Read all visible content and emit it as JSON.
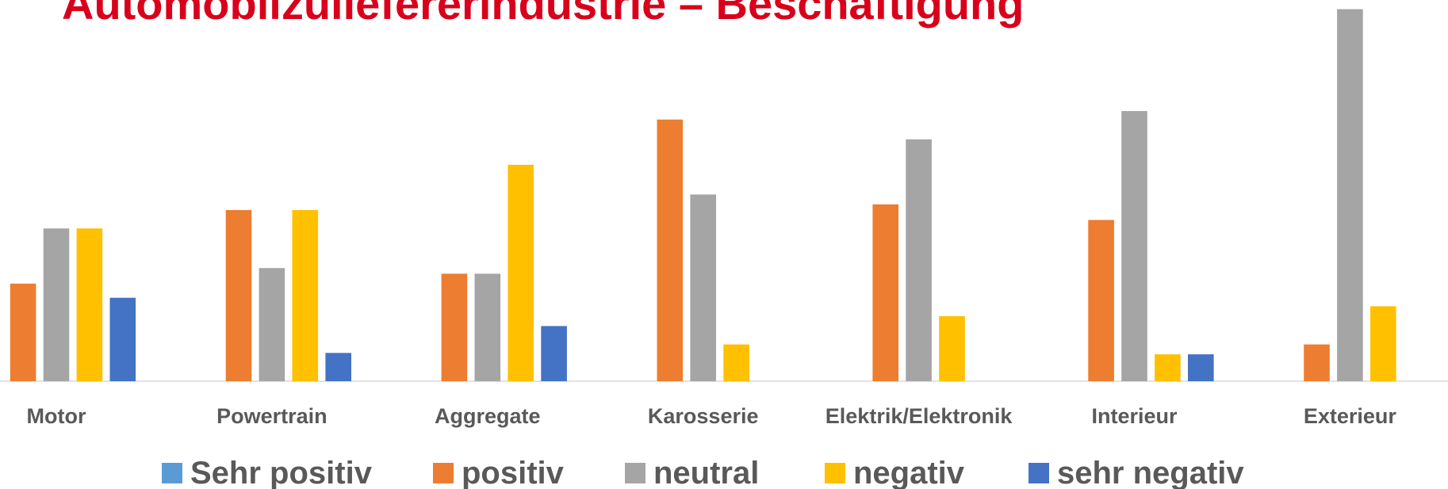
{
  "chart_data": {
    "type": "bar",
    "title": "Automobilzuliefererindustrie – Beschäftigung",
    "categories": [
      "Motor",
      "Powertrain",
      "Aggregate",
      "Karosserie",
      "Elektrik/Elektronik",
      "Interieur",
      "Exterieur"
    ],
    "series": [
      {
        "name": "Sehr positiv",
        "color": "#5b9bd5",
        "values": [
          null,
          null,
          null,
          null,
          null,
          null,
          null
        ]
      },
      {
        "name": "positiv",
        "color": "#ed7d31",
        "values": [
          6.9,
          12.1,
          7.6,
          18.5,
          12.5,
          11.4,
          2.6
        ]
      },
      {
        "name": "neutral",
        "color": "#a5a5a5",
        "values": [
          10.8,
          8.0,
          7.6,
          13.2,
          17.1,
          19.1,
          26.3
        ]
      },
      {
        "name": "negativ",
        "color": "#ffc000",
        "values": [
          10.8,
          12.1,
          15.3,
          2.6,
          4.6,
          1.9,
          5.3
        ]
      },
      {
        "name": "sehr negativ",
        "color": "#4472c4",
        "values": [
          5.9,
          2.0,
          3.9,
          null,
          null,
          1.9,
          null
        ]
      }
    ],
    "ylim": [
      0,
      26.3
    ],
    "legend": "bottom"
  }
}
